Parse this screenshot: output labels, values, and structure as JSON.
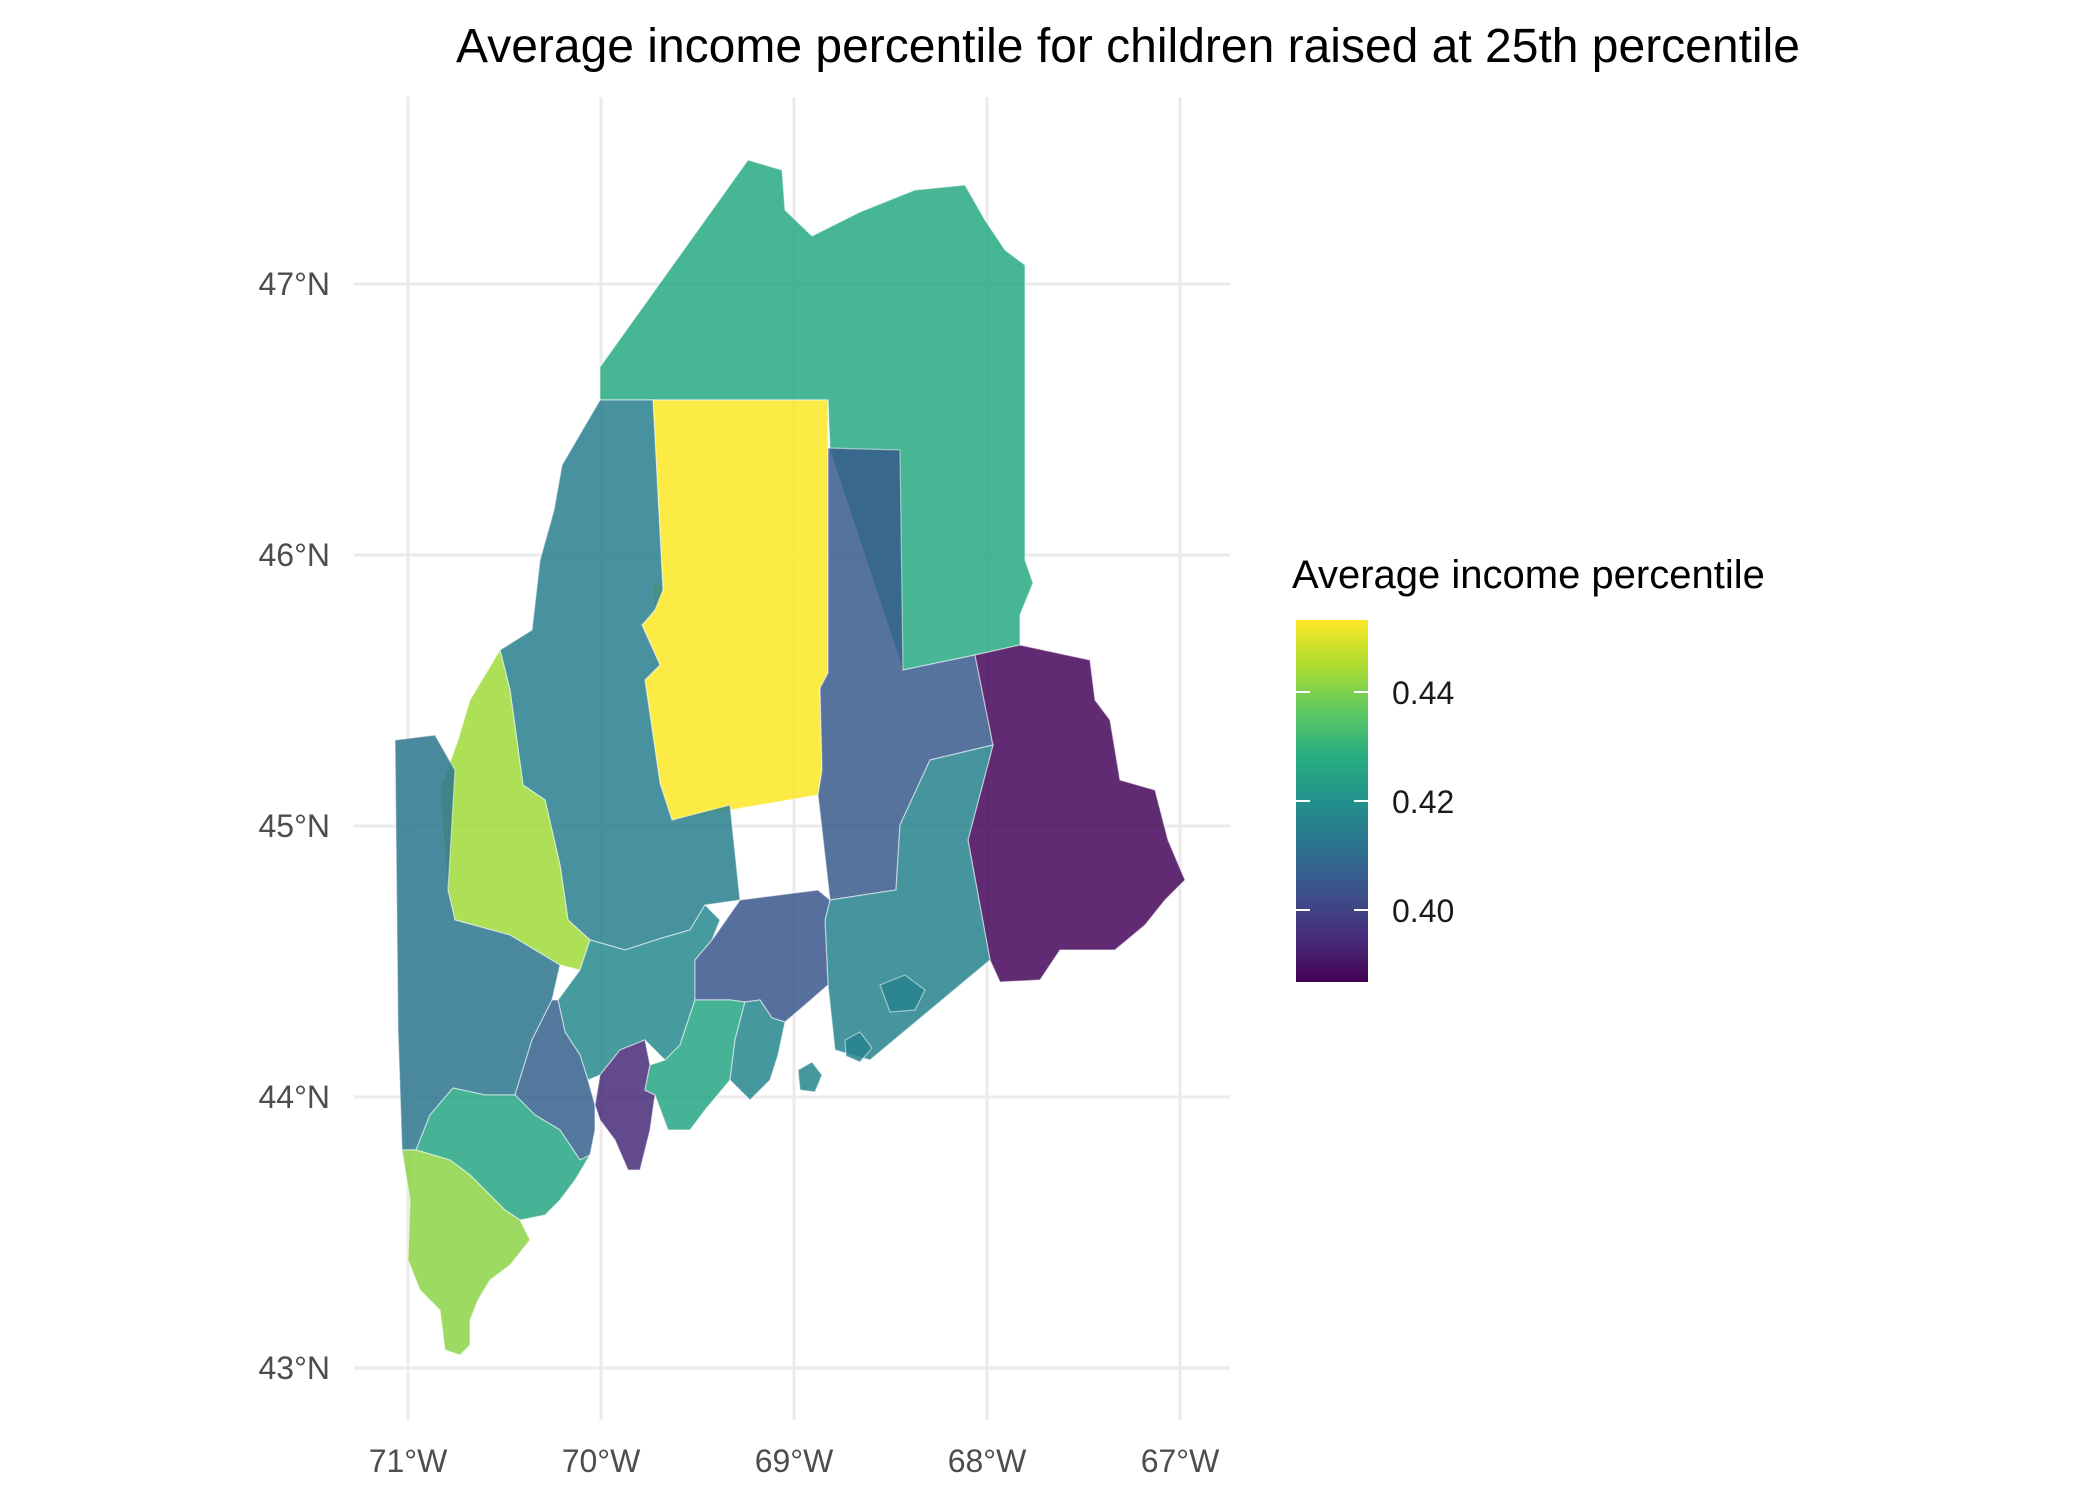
{
  "title": "Average income percentile for children raised at 25th percentile",
  "axes": {
    "x_ticks": [
      "71°W",
      "70°W",
      "69°W",
      "68°W",
      "67°W"
    ],
    "y_ticks": [
      "47°N",
      "46°N",
      "45°N",
      "44°N",
      "43°N"
    ]
  },
  "legend": {
    "title": "Average income percentile",
    "labels": [
      "0.44",
      "0.42",
      "0.40"
    ],
    "colormap": "viridis",
    "range": [
      0.387,
      0.455
    ]
  },
  "regions": [
    {
      "id": "aroostook",
      "value": 0.428
    },
    {
      "id": "franklin",
      "value": 0.445
    },
    {
      "id": "piscataquis",
      "value": 0.455
    },
    {
      "id": "somerset",
      "value": 0.416
    },
    {
      "id": "penobscot",
      "value": 0.406
    },
    {
      "id": "washington",
      "value": 0.388
    },
    {
      "id": "hancock",
      "value": 0.417
    },
    {
      "id": "oxford",
      "value": 0.413
    },
    {
      "id": "waldo",
      "value": 0.405
    },
    {
      "id": "kennebec",
      "value": 0.419
    },
    {
      "id": "androscoggin",
      "value": 0.408
    },
    {
      "id": "cumberland",
      "value": 0.427
    },
    {
      "id": "york",
      "value": 0.443
    },
    {
      "id": "sagadahoc",
      "value": 0.395
    },
    {
      "id": "lincoln",
      "value": 0.427
    },
    {
      "id": "knox",
      "value": 0.418
    }
  ]
}
